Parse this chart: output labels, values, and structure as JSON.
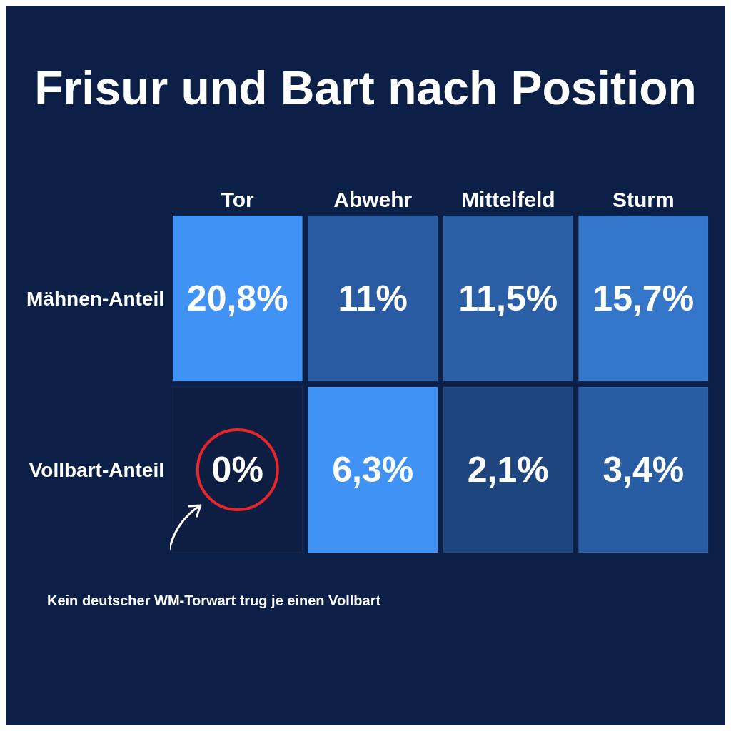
{
  "chart_data": {
    "type": "heatmap",
    "title": "Frisur und Bart nach Position",
    "categories": [
      "Tor",
      "Abwehr",
      "Mittelfeld",
      "Sturm"
    ],
    "y_categories": [
      "Mähnen-Anteil",
      "Vollbart-Anteil"
    ],
    "cells": [
      [
        20.8,
        11,
        11.5,
        15.7
      ],
      [
        0,
        6.3,
        2.1,
        3.4
      ]
    ],
    "cell_labels": [
      [
        "20,8%",
        "11%",
        "11,5%",
        "15,7%"
      ],
      [
        "0%",
        "6,3%",
        "2,1%",
        "3,4%"
      ]
    ],
    "annotations": [
      "Kein deutscher WM-Torwart trug je einen Vollbart"
    ]
  }
}
